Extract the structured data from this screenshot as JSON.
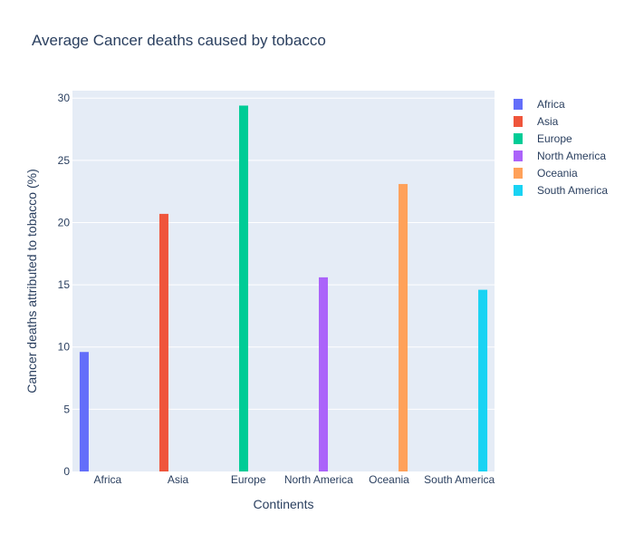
{
  "chart_data": {
    "type": "bar",
    "title": "Average Cancer deaths caused by tobacco",
    "xlabel": "Continents",
    "ylabel": "Cancer deaths attributed to tobacco (%)",
    "categories": [
      "Africa",
      "Asia",
      "Europe",
      "North America",
      "Oceania",
      "South America"
    ],
    "ylim": [
      0,
      30.6
    ],
    "yticks": [
      0,
      5,
      10,
      15,
      20,
      25,
      30
    ],
    "grid": true,
    "legend_position": "top-right",
    "plot_background": "#e5ecf6",
    "series": [
      {
        "name": "Africa",
        "category": "Africa",
        "value": 9.6,
        "color": "#636efa"
      },
      {
        "name": "Asia",
        "category": "Asia",
        "value": 20.7,
        "color": "#ef553b"
      },
      {
        "name": "Europe",
        "category": "Europe",
        "value": 29.4,
        "color": "#00cc96"
      },
      {
        "name": "North America",
        "category": "North America",
        "value": 15.6,
        "color": "#ab63fa"
      },
      {
        "name": "Oceania",
        "category": "Oceania",
        "value": 23.1,
        "color": "#ffa15a"
      },
      {
        "name": "South America",
        "category": "South America",
        "value": 14.6,
        "color": "#19d3f3"
      }
    ]
  }
}
